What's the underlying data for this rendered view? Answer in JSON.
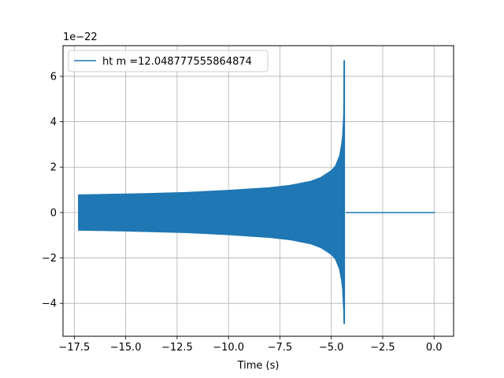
{
  "chart_data": {
    "type": "line",
    "xlabel": "Time (s)",
    "ylabel": "",
    "y_offset_label": "1e−22",
    "y_scale": 1e-22,
    "xlim": [
      -18.05,
      0.95
    ],
    "ylim": [
      -5.45,
      7.35
    ],
    "grid": true,
    "legend_position": "top-left",
    "x_ticks": [
      {
        "value": -17.5,
        "label": "−17.5"
      },
      {
        "value": -15.0,
        "label": "−15.0"
      },
      {
        "value": -12.5,
        "label": "−12.5"
      },
      {
        "value": -10.0,
        "label": "−10.0"
      },
      {
        "value": -7.5,
        "label": "−7.5"
      },
      {
        "value": -5.0,
        "label": "−5.0"
      },
      {
        "value": -2.5,
        "label": "−2.5"
      },
      {
        "value": 0.0,
        "label": "0.0"
      }
    ],
    "y_ticks": [
      {
        "value": -4,
        "label": "−4"
      },
      {
        "value": -2,
        "label": "−2"
      },
      {
        "value": 0,
        "label": "0"
      },
      {
        "value": 2,
        "label": "2"
      },
      {
        "value": 4,
        "label": "4"
      },
      {
        "value": 6,
        "label": "6"
      }
    ],
    "series": [
      {
        "name": "ht m =12.048777555864874",
        "color": "#1f77b4",
        "envelope": {
          "x": [
            -17.3,
            -16.0,
            -14.0,
            -12.0,
            -10.0,
            -8.0,
            -7.0,
            -6.0,
            -5.5,
            -5.0,
            -4.8,
            -4.6,
            -4.5,
            -4.45,
            -4.4,
            -4.37
          ],
          "upper": [
            0.78,
            0.8,
            0.84,
            0.89,
            0.98,
            1.1,
            1.2,
            1.38,
            1.55,
            1.85,
            2.05,
            2.5,
            3.0,
            3.4,
            4.3,
            6.7
          ],
          "lower": [
            -0.78,
            -0.8,
            -0.84,
            -0.89,
            -0.98,
            -1.1,
            -1.2,
            -1.38,
            -1.55,
            -1.85,
            -2.05,
            -2.5,
            -3.0,
            -3.4,
            -4.3,
            -4.9
          ]
        },
        "zero_segment": {
          "x_start": -4.3,
          "x_end": 0.05,
          "y": 0
        }
      }
    ]
  }
}
